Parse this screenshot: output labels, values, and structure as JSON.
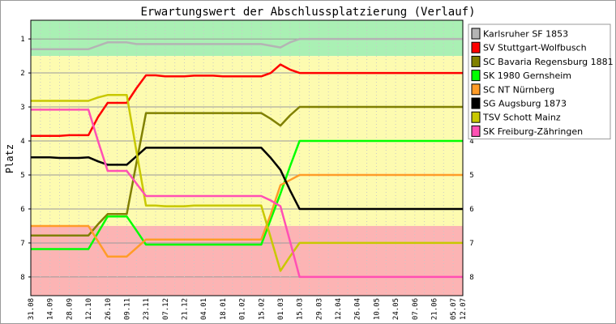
{
  "chart_data": {
    "type": "line",
    "title": "Erwartungswert der Abschlussplatzierung (Verlauf)",
    "ylabel": "Platz",
    "xlabel": "",
    "ylim": [
      8.55,
      0.45
    ],
    "y_ticks": [
      "1",
      "2",
      "3",
      "4",
      "5",
      "6",
      "7",
      "8"
    ],
    "bands": [
      {
        "from": 0.45,
        "to": 1.5,
        "color": "#aaf0b4"
      },
      {
        "from": 1.5,
        "to": 6.5,
        "color": "#fdfbb0"
      },
      {
        "from": 6.5,
        "to": 8.55,
        "color": "#fcb4b4"
      }
    ],
    "x_dates": [
      "31.08",
      "07.09",
      "14.09",
      "21.09",
      "28.09",
      "05.10",
      "12.10",
      "19.10",
      "26.10",
      "02.11",
      "09.11",
      "16.11",
      "23.11",
      "30.11",
      "07.12",
      "14.12",
      "21.12",
      "28.12",
      "04.01",
      "11.01",
      "18.01",
      "25.01",
      "01.02",
      "08.02",
      "15.02",
      "22.02",
      "01.03",
      "08.03",
      "15.03",
      "22.03",
      "29.03",
      "05.04",
      "12.04",
      "19.04",
      "26.04",
      "03.05",
      "10.05",
      "17.05",
      "24.05",
      "31.05",
      "07.06",
      "14.06",
      "21.06",
      "28.06",
      "05.07",
      "12.07"
    ],
    "x_labels": [
      "31.08",
      "14.09",
      "28.09",
      "12.10",
      "26.10",
      "09.11",
      "23.11",
      "07.12",
      "21.12",
      "04.01",
      "18.01",
      "01.02",
      "15.02",
      "01.03",
      "15.03",
      "29.03",
      "12.04",
      "26.04",
      "10.05",
      "24.05",
      "07.06",
      "21.06",
      "05.07",
      "12.07"
    ],
    "series": [
      {
        "name": "Karlsruher SF 1853",
        "color": "#b4b4b4",
        "values": [
          1.3,
          1.3,
          1.3,
          1.3,
          1.3,
          1.3,
          1.3,
          1.2,
          1.1,
          1.1,
          1.1,
          1.15,
          1.15,
          1.15,
          1.15,
          1.15,
          1.15,
          1.15,
          1.15,
          1.15,
          1.15,
          1.15,
          1.15,
          1.15,
          1.15,
          1.2,
          1.25,
          1.1,
          1.0,
          1.0,
          1.0,
          1.0,
          1.0,
          1.0,
          1.0,
          1.0,
          1.0,
          1.0,
          1.0,
          1.0,
          1.0,
          1.0,
          1.0,
          1.0,
          1.0,
          1.0
        ]
      },
      {
        "name": "SV Stuttgart-Wolfbusch",
        "color": "#ff0000",
        "values": [
          3.85,
          3.85,
          3.85,
          3.85,
          3.83,
          3.83,
          3.83,
          3.3,
          2.88,
          2.88,
          2.88,
          2.45,
          2.07,
          2.07,
          2.1,
          2.1,
          2.1,
          2.08,
          2.08,
          2.08,
          2.1,
          2.1,
          2.1,
          2.1,
          2.1,
          2.0,
          1.75,
          1.9,
          2.0,
          2.0,
          2.0,
          2.0,
          2.0,
          2.0,
          2.0,
          2.0,
          2.0,
          2.0,
          2.0,
          2.0,
          2.0,
          2.0,
          2.0,
          2.0,
          2.0,
          2.0
        ]
      },
      {
        "name": "SC Bavaria Regensburg 1881",
        "color": "#808000",
        "values": [
          6.78,
          6.78,
          6.78,
          6.78,
          6.78,
          6.78,
          6.78,
          6.45,
          6.15,
          6.15,
          6.15,
          4.65,
          3.18,
          3.18,
          3.18,
          3.18,
          3.18,
          3.18,
          3.18,
          3.18,
          3.18,
          3.18,
          3.18,
          3.18,
          3.18,
          3.35,
          3.55,
          3.25,
          3.0,
          3.0,
          3.0,
          3.0,
          3.0,
          3.0,
          3.0,
          3.0,
          3.0,
          3.0,
          3.0,
          3.0,
          3.0,
          3.0,
          3.0,
          3.0,
          3.0,
          3.0
        ]
      },
      {
        "name": "SK 1980 Gernsheim",
        "color": "#00ff00",
        "values": [
          7.18,
          7.18,
          7.18,
          7.18,
          7.18,
          7.18,
          7.18,
          6.7,
          6.22,
          6.22,
          6.22,
          6.63,
          7.05,
          7.05,
          7.05,
          7.05,
          7.05,
          7.05,
          7.05,
          7.05,
          7.05,
          7.05,
          7.05,
          7.05,
          7.05,
          6.3,
          5.55,
          4.75,
          4.0,
          4.0,
          4.0,
          4.0,
          4.0,
          4.0,
          4.0,
          4.0,
          4.0,
          4.0,
          4.0,
          4.0,
          4.0,
          4.0,
          4.0,
          4.0,
          4.0,
          4.0
        ]
      },
      {
        "name": "SC NT Nürnberg",
        "color": "#ff9c28",
        "values": [
          6.5,
          6.5,
          6.5,
          6.5,
          6.5,
          6.5,
          6.5,
          6.95,
          7.4,
          7.4,
          7.4,
          7.15,
          6.9,
          6.9,
          6.9,
          6.9,
          6.9,
          6.9,
          6.9,
          6.9,
          6.9,
          6.9,
          6.9,
          6.9,
          6.9,
          6.15,
          5.3,
          5.15,
          5.0,
          5.0,
          5.0,
          5.0,
          5.0,
          5.0,
          5.0,
          5.0,
          5.0,
          5.0,
          5.0,
          5.0,
          5.0,
          5.0,
          5.0,
          5.0,
          5.0,
          5.0
        ]
      },
      {
        "name": "SG Augsburg 1873",
        "color": "#000000",
        "values": [
          4.48,
          4.48,
          4.48,
          4.5,
          4.5,
          4.5,
          4.48,
          4.6,
          4.7,
          4.7,
          4.7,
          4.45,
          4.2,
          4.2,
          4.2,
          4.2,
          4.2,
          4.2,
          4.2,
          4.2,
          4.2,
          4.2,
          4.2,
          4.2,
          4.2,
          4.5,
          4.85,
          5.45,
          6.0,
          6.0,
          6.0,
          6.0,
          6.0,
          6.0,
          6.0,
          6.0,
          6.0,
          6.0,
          6.0,
          6.0,
          6.0,
          6.0,
          6.0,
          6.0,
          6.0,
          6.0
        ]
      },
      {
        "name": "TSV Schott Mainz",
        "color": "#c8c800",
        "values": [
          2.82,
          2.82,
          2.82,
          2.82,
          2.82,
          2.82,
          2.82,
          2.72,
          2.65,
          2.65,
          2.65,
          4.3,
          5.9,
          5.9,
          5.92,
          5.92,
          5.92,
          5.9,
          5.9,
          5.9,
          5.9,
          5.9,
          5.9,
          5.9,
          5.9,
          6.85,
          7.82,
          7.4,
          7.0,
          7.0,
          7.0,
          7.0,
          7.0,
          7.0,
          7.0,
          7.0,
          7.0,
          7.0,
          7.0,
          7.0,
          7.0,
          7.0,
          7.0,
          7.0,
          7.0,
          7.0
        ]
      },
      {
        "name": "SK Freiburg-Zähringen",
        "color": "#ff50b4",
        "values": [
          3.08,
          3.08,
          3.08,
          3.08,
          3.08,
          3.08,
          3.08,
          4.0,
          4.88,
          4.88,
          4.88,
          5.25,
          5.62,
          5.62,
          5.62,
          5.62,
          5.62,
          5.62,
          5.62,
          5.62,
          5.62,
          5.62,
          5.62,
          5.62,
          5.62,
          5.75,
          5.92,
          6.95,
          8.0,
          8.0,
          8.0,
          8.0,
          8.0,
          8.0,
          8.0,
          8.0,
          8.0,
          8.0,
          8.0,
          8.0,
          8.0,
          8.0,
          8.0,
          8.0,
          8.0,
          8.0
        ]
      }
    ]
  }
}
